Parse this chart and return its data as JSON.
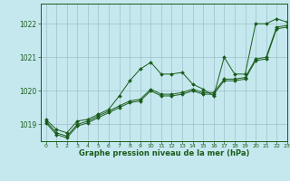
{
  "title": "Graphe pression niveau de la mer (hPa)",
  "bg_color": "#c5e8ef",
  "grid_color": "#9fbfc8",
  "line_color": "#1a5c1a",
  "xlim": [
    -0.5,
    23
  ],
  "ylim": [
    1018.5,
    1022.6
  ],
  "yticks": [
    1019,
    1020,
    1021,
    1022
  ],
  "xticks": [
    0,
    1,
    2,
    3,
    4,
    5,
    6,
    7,
    8,
    9,
    10,
    11,
    12,
    13,
    14,
    15,
    16,
    17,
    18,
    19,
    20,
    21,
    22,
    23
  ],
  "series": [
    [
      1019.15,
      1018.85,
      1018.75,
      1019.1,
      1019.15,
      1019.3,
      1019.45,
      1019.85,
      1020.3,
      1020.65,
      1020.85,
      1020.5,
      1020.5,
      1020.55,
      1020.2,
      1020.05,
      1019.85,
      1021.0,
      1020.5,
      1020.5,
      1022.0,
      1022.0,
      1022.15,
      1022.05
    ],
    [
      1019.1,
      1018.75,
      1018.65,
      1019.0,
      1019.1,
      1019.25,
      1019.4,
      1019.55,
      1019.7,
      1019.75,
      1020.05,
      1019.9,
      1019.9,
      1019.95,
      1020.05,
      1019.95,
      1019.95,
      1020.35,
      1020.35,
      1020.4,
      1020.95,
      1021.0,
      1021.9,
      1021.95
    ],
    [
      1019.05,
      1018.7,
      1018.6,
      1018.95,
      1019.05,
      1019.2,
      1019.35,
      1019.5,
      1019.65,
      1019.7,
      1020.0,
      1019.85,
      1019.85,
      1019.9,
      1020.0,
      1019.9,
      1019.9,
      1020.3,
      1020.3,
      1020.35,
      1020.9,
      1020.95,
      1021.85,
      1021.9
    ]
  ]
}
